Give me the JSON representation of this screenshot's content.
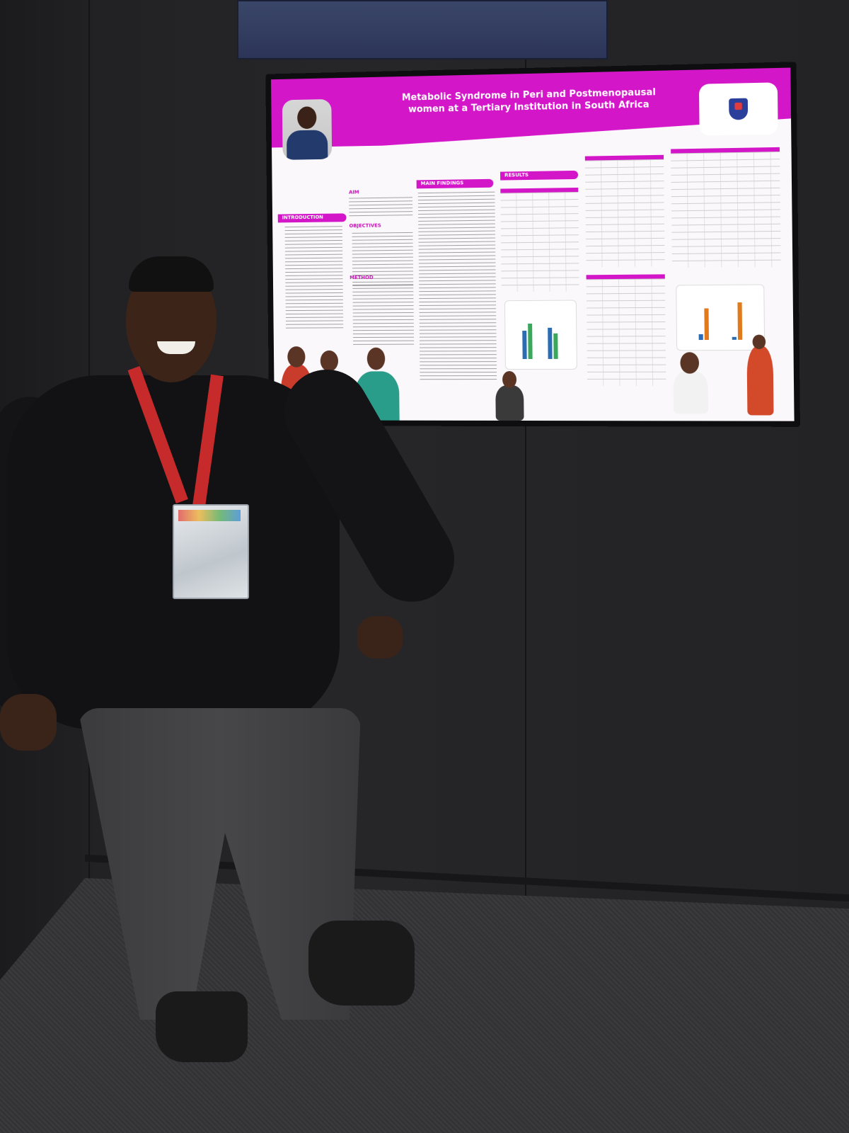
{
  "poster": {
    "title_line1": "Metabolic Syndrome in Peri and Postmenopausal",
    "title_line2": "women at a Tertiary Institution in South Africa",
    "sections": {
      "introduction": "INTRODUCTION",
      "aim": "AIM",
      "objectives": "OBJECTIVES",
      "method": "METHOD",
      "main_findings": "MAIN FINDINGS",
      "results": "RESULTS"
    }
  },
  "colors": {
    "poster_magenta": "#d416c9",
    "wall": "#242426",
    "lanyard": "#c72a2a",
    "sweater": "#121214"
  },
  "icons": [
    "university-crest-icon"
  ]
}
